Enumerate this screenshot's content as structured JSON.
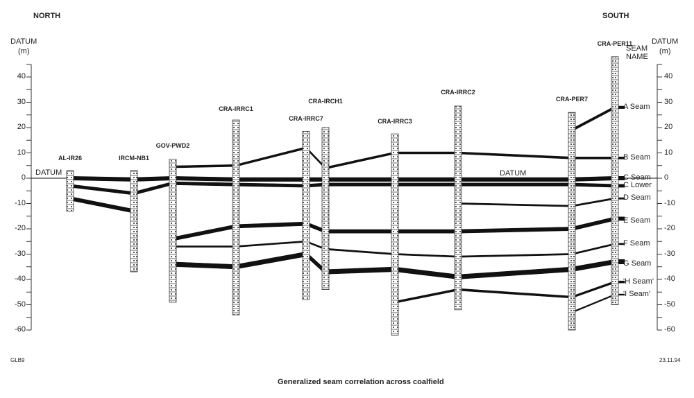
{
  "labels": {
    "north": "NORTH",
    "south": "SOUTH",
    "left_axis_title": "DATUM",
    "left_axis_unit": "(m)",
    "right_axis_title": "DATUM",
    "right_axis_unit": "(m)",
    "seam_name_header_1": "SEAM",
    "seam_name_header_2": "NAME",
    "datum_left": "DATUM",
    "datum_mid": "DATUM",
    "figure_id": "GLB9",
    "date": "23.11.94",
    "caption": "Generalized seam correlation across coalfield"
  },
  "axis": {
    "min": -60,
    "max": 45,
    "ticks": [
      40,
      30,
      20,
      10,
      0,
      -10,
      -20,
      -30,
      -40,
      -50,
      -60
    ],
    "minor_step": 5
  },
  "boreholes": [
    {
      "name": "AL-IR26",
      "top": 3,
      "bottom": -13
    },
    {
      "name": "IRCM-NB1",
      "top": 3,
      "bottom": -37
    },
    {
      "name": "GOV-PWD2",
      "top": 7.5,
      "bottom": -49
    },
    {
      "name": "CRA-IRRC1",
      "top": 23,
      "bottom": -54
    },
    {
      "name": "CRA-IRRC7",
      "top": 18.5,
      "bottom": -48
    },
    {
      "name": "CRA-IRCH1",
      "top": 20,
      "bottom": -44
    },
    {
      "name": "CRA-IRRC3",
      "top": 17.5,
      "bottom": -62
    },
    {
      "name": "CRA-IRRC2",
      "top": 28.5,
      "bottom": -52
    },
    {
      "name": "CRA-PER7",
      "top": 26,
      "bottom": -60
    },
    {
      "name": "CRA-PER11",
      "top": 48,
      "bottom": -50
    }
  ],
  "seams": [
    {
      "name": "A Seam",
      "label_at": 28,
      "thickness": 1,
      "elev": [
        null,
        null,
        null,
        null,
        null,
        null,
        null,
        null,
        19,
        28
      ]
    },
    {
      "name": "B Seam",
      "label_at": 8,
      "thickness": 0.8,
      "elev": [
        null,
        null,
        4.5,
        5,
        12,
        4,
        10,
        10,
        8,
        8
      ]
    },
    {
      "name": "C Seam",
      "label_at": 0,
      "thickness": 1.5,
      "elev": [
        0,
        -0.5,
        0,
        -0.5,
        -0.5,
        -0.5,
        -0.5,
        -0.5,
        -0.5,
        0
      ]
    },
    {
      "name": "C Lower",
      "label_at": -3,
      "thickness": 1.2,
      "elev": [
        -3,
        -6,
        -2,
        -2.5,
        -3,
        -2.5,
        -2.5,
        -2.5,
        -2.5,
        -3
      ]
    },
    {
      "name": "D Seam",
      "label_at": -8,
      "thickness": 0.6,
      "elev": [
        null,
        null,
        null,
        null,
        null,
        null,
        null,
        -10,
        -11,
        -8
      ]
    },
    {
      "name": "E Seam",
      "label_at": -17,
      "thickness": 1.4,
      "elev": [
        null,
        null,
        -24,
        -19,
        -18,
        -21,
        -21,
        -21,
        -20,
        -16
      ]
    },
    {
      "name": "F Seam",
      "label_at": -26,
      "thickness": 0.6,
      "elev": [
        null,
        null,
        -27,
        -27,
        -25,
        -28,
        -30,
        -31,
        -30,
        -26
      ]
    },
    {
      "name": "G Seam",
      "label_at": -34,
      "thickness": 1.8,
      "elev": [
        null,
        null,
        -34,
        -35,
        -30,
        -37,
        -36,
        -39,
        -36,
        -33
      ]
    },
    {
      "name": "'H Seam'",
      "label_at": -41,
      "thickness": 0.8,
      "elev": [
        null,
        null,
        null,
        null,
        null,
        null,
        -49,
        -44,
        -47,
        -41
      ]
    },
    {
      "name": "'I Seam'",
      "label_at": -46,
      "thickness": 0.5,
      "elev": [
        null,
        null,
        null,
        null,
        null,
        null,
        null,
        null,
        -53,
        -46
      ]
    },
    {
      "name": "",
      "label_at": null,
      "thickness": 1.5,
      "elev": [
        -8,
        -13,
        null,
        null,
        null,
        null,
        null,
        null,
        null,
        null
      ]
    }
  ],
  "colors": {
    "ink": "#111111",
    "axis": "#333333"
  }
}
